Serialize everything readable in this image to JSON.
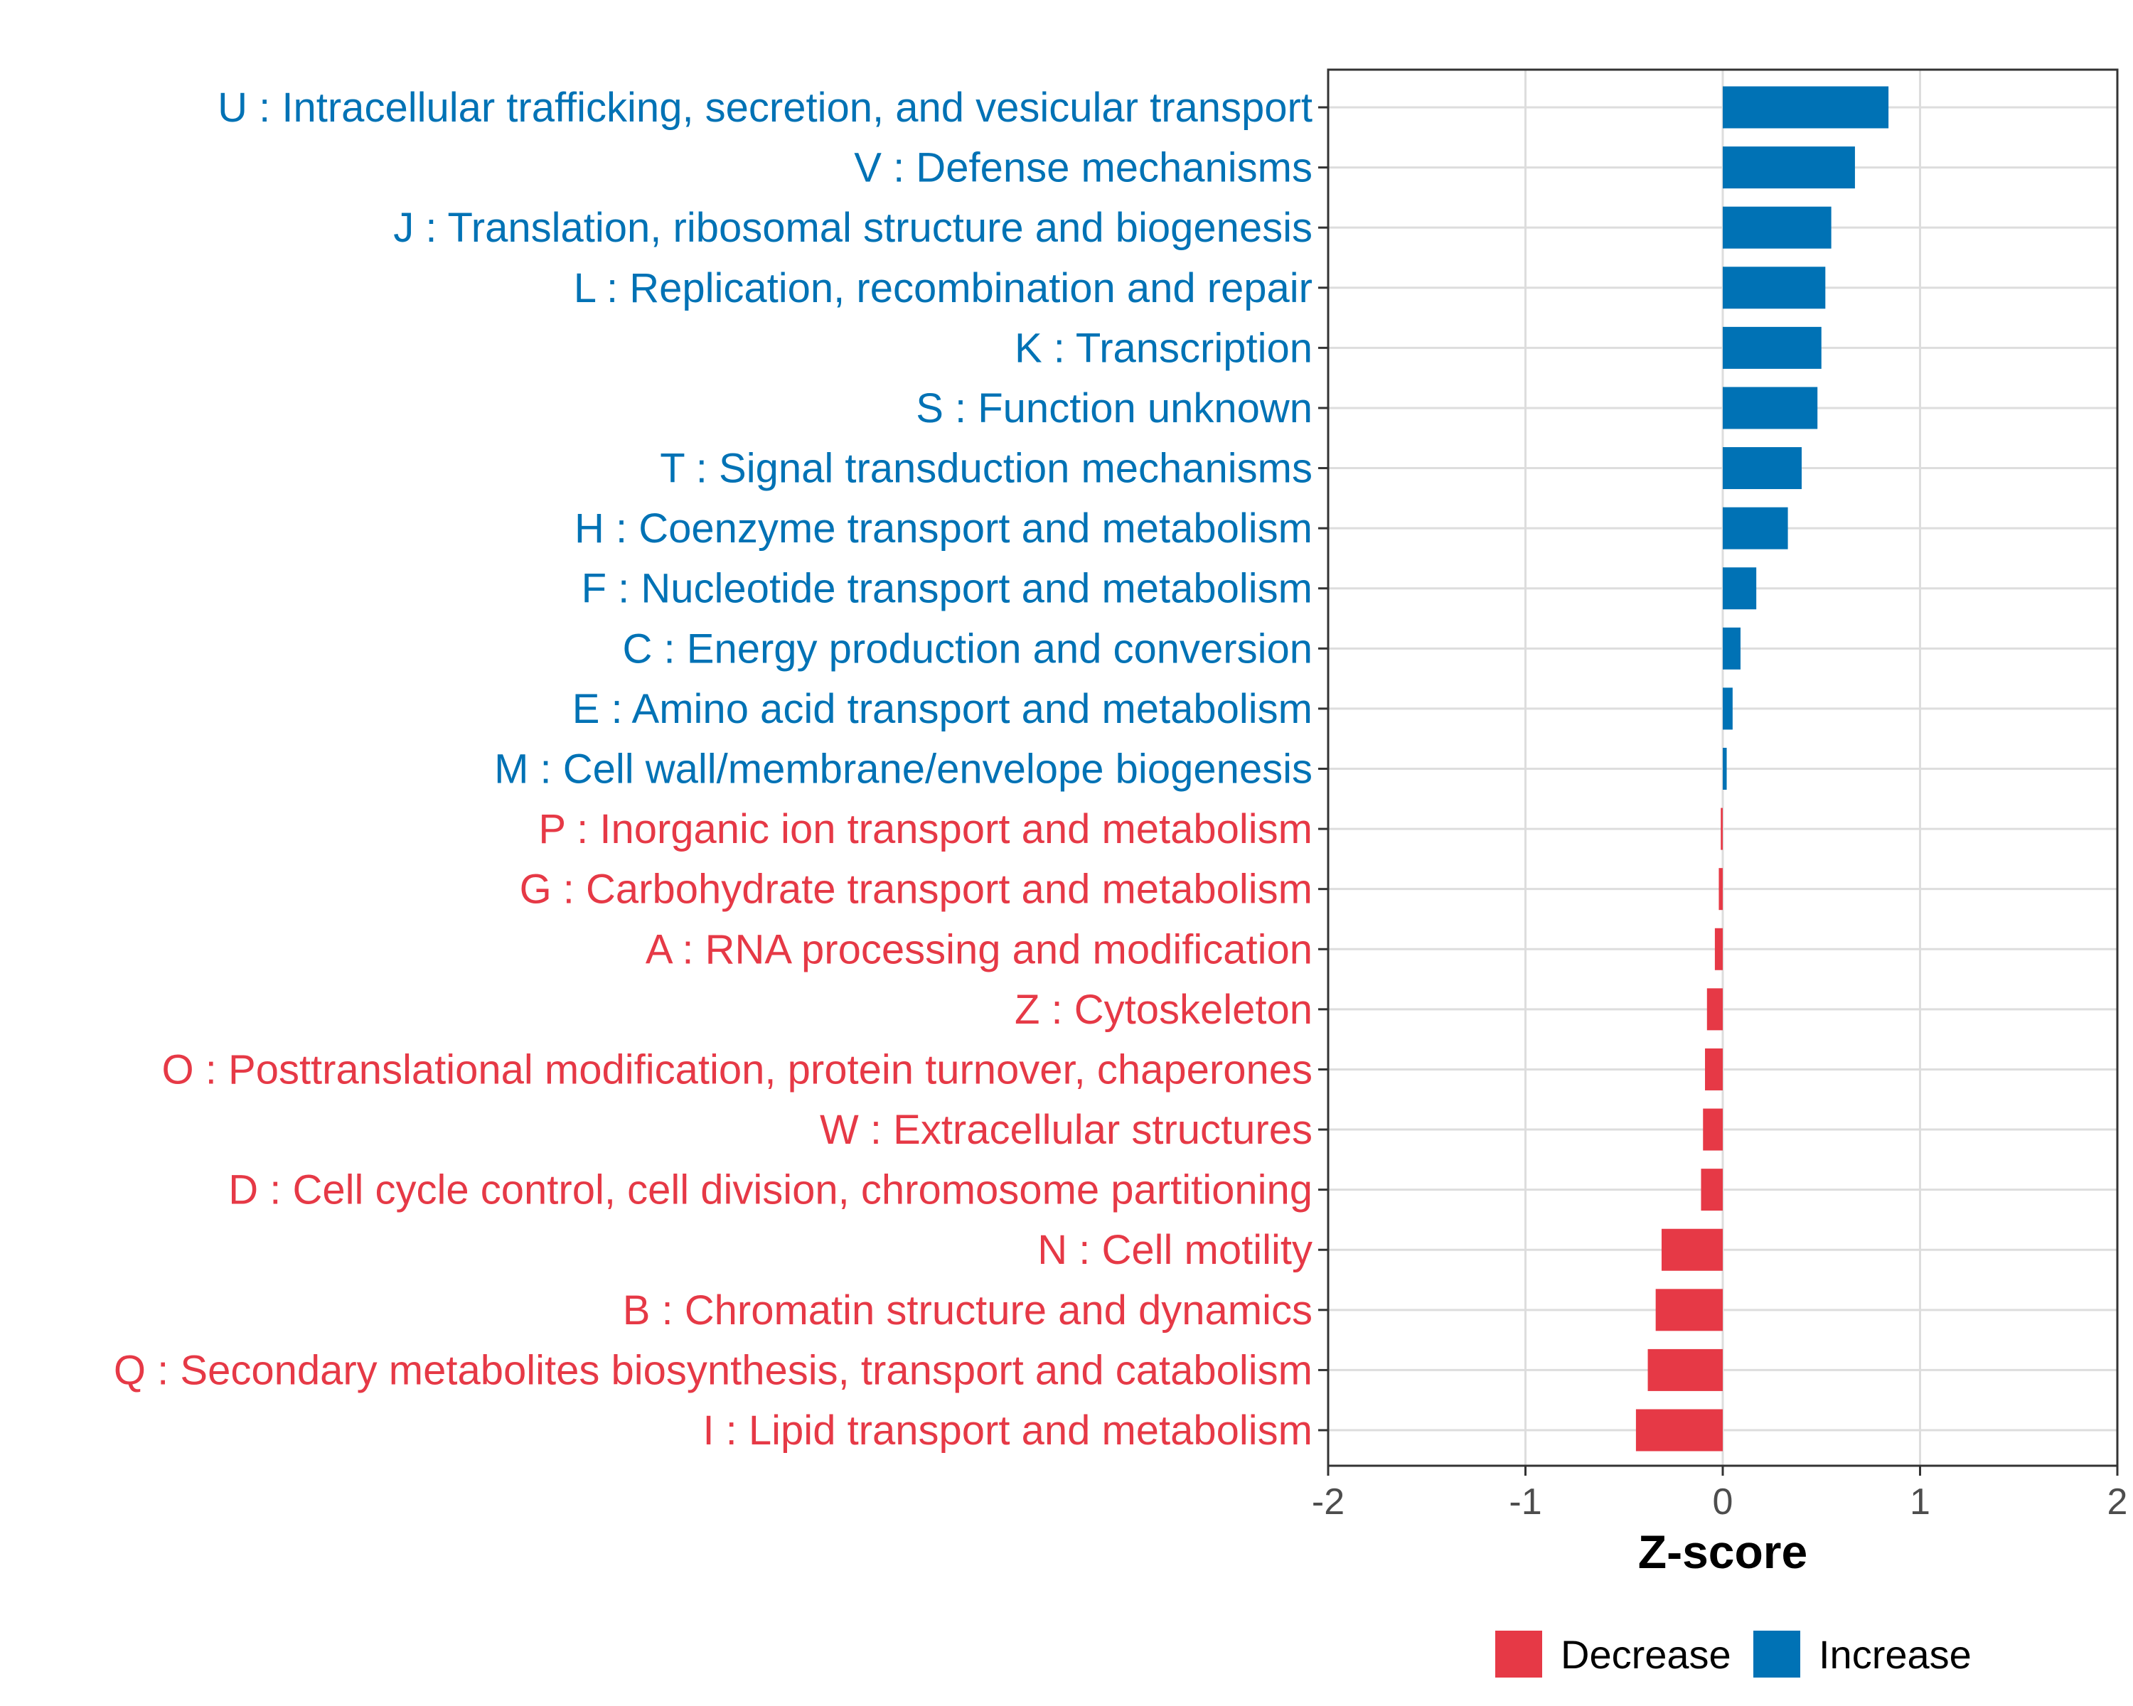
{
  "colors": {
    "increase": "#0072B5",
    "decrease": "#E63946",
    "grid": "#dddddd",
    "axis": "#333333"
  },
  "chart_data": {
    "type": "bar",
    "orientation": "horizontal",
    "xlabel": "Z-score",
    "xlim": [
      -2,
      2
    ],
    "xticks": [
      -2,
      -1,
      0,
      1,
      2
    ],
    "grid": true,
    "legend": {
      "position": "bottom",
      "entries": [
        {
          "name": "Decrease",
          "color_key": "decrease"
        },
        {
          "name": "Increase",
          "color_key": "increase"
        }
      ]
    },
    "categories": [
      {
        "label": "U : Intracellular trafficking, secretion, and vesicular transport",
        "value": 0.84,
        "direction": "increase"
      },
      {
        "label": "V : Defense mechanisms",
        "value": 0.67,
        "direction": "increase"
      },
      {
        "label": "J : Translation, ribosomal structure and biogenesis",
        "value": 0.55,
        "direction": "increase"
      },
      {
        "label": "L : Replication, recombination and repair",
        "value": 0.52,
        "direction": "increase"
      },
      {
        "label": "K : Transcription",
        "value": 0.5,
        "direction": "increase"
      },
      {
        "label": "S : Function unknown",
        "value": 0.48,
        "direction": "increase"
      },
      {
        "label": "T : Signal transduction mechanisms",
        "value": 0.4,
        "direction": "increase"
      },
      {
        "label": "H : Coenzyme transport and metabolism",
        "value": 0.33,
        "direction": "increase"
      },
      {
        "label": "F : Nucleotide transport and metabolism",
        "value": 0.17,
        "direction": "increase"
      },
      {
        "label": "C : Energy production and conversion",
        "value": 0.09,
        "direction": "increase"
      },
      {
        "label": "E : Amino acid transport and metabolism",
        "value": 0.05,
        "direction": "increase"
      },
      {
        "label": "M : Cell wall/membrane/envelope biogenesis",
        "value": 0.02,
        "direction": "increase"
      },
      {
        "label": "P : Inorganic ion transport and metabolism",
        "value": -0.01,
        "direction": "decrease"
      },
      {
        "label": "G : Carbohydrate transport and metabolism",
        "value": -0.02,
        "direction": "decrease"
      },
      {
        "label": "A : RNA processing and modification",
        "value": -0.04,
        "direction": "decrease"
      },
      {
        "label": "Z : Cytoskeleton",
        "value": -0.08,
        "direction": "decrease"
      },
      {
        "label": "O : Posttranslational modification, protein turnover, chaperones",
        "value": -0.09,
        "direction": "decrease"
      },
      {
        "label": "W : Extracellular structures",
        "value": -0.1,
        "direction": "decrease"
      },
      {
        "label": "D : Cell cycle control, cell division, chromosome partitioning",
        "value": -0.11,
        "direction": "decrease"
      },
      {
        "label": "N : Cell motility",
        "value": -0.31,
        "direction": "decrease"
      },
      {
        "label": "B : Chromatin structure and dynamics",
        "value": -0.34,
        "direction": "decrease"
      },
      {
        "label": "Q : Secondary metabolites biosynthesis, transport and catabolism",
        "value": -0.38,
        "direction": "decrease"
      },
      {
        "label": "I : Lipid transport and metabolism",
        "value": -0.44,
        "direction": "decrease"
      }
    ]
  }
}
